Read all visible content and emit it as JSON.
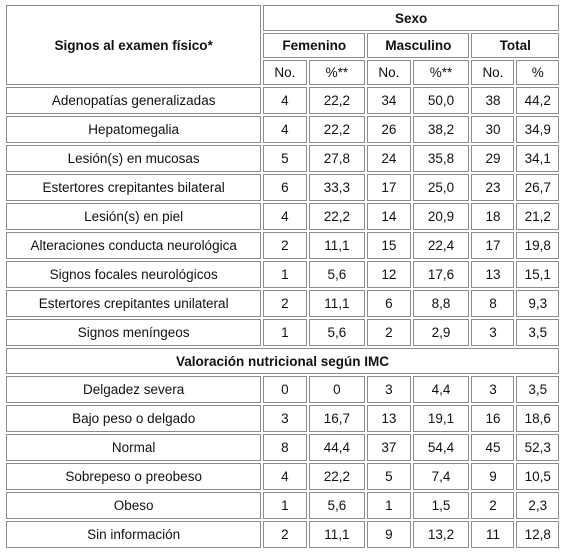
{
  "header": {
    "row_label": "Signos al examen físico*",
    "group": "Sexo",
    "subgroups": [
      "Femenino",
      "Masculino",
      "Total"
    ],
    "cols": [
      "No.",
      "%**",
      "No.",
      "%**",
      "No.",
      "%"
    ]
  },
  "signs": [
    {
      "label": "Adenopatías generalizadas",
      "values": [
        "4",
        "22,2",
        "34",
        "50,0",
        "38",
        "44,2"
      ]
    },
    {
      "label": "Hepatomegalia",
      "values": [
        "4",
        "22,2",
        "26",
        "38,2",
        "30",
        "34,9"
      ]
    },
    {
      "label": "Lesión(s) en mucosas",
      "values": [
        "5",
        "27,8",
        "24",
        "35,8",
        "29",
        "34,1"
      ]
    },
    {
      "label": "Estertores crepitantes bilateral",
      "values": [
        "6",
        "33,3",
        "17",
        "25,0",
        "23",
        "26,7"
      ]
    },
    {
      "label": "Lesión(s) en piel",
      "values": [
        "4",
        "22,2",
        "14",
        "20,9",
        "18",
        "21,2"
      ]
    },
    {
      "label": "Alteraciones conducta neurológica",
      "values": [
        "2",
        "11,1",
        "15",
        "22,4",
        "17",
        "19,8"
      ]
    },
    {
      "label": "Signos focales neurológicos",
      "values": [
        "1",
        "5,6",
        "12",
        "17,6",
        "13",
        "15,1"
      ]
    },
    {
      "label": "Estertores crepitantes unilateral",
      "values": [
        "2",
        "11,1",
        "6",
        "8,8",
        "8",
        "9,3"
      ]
    },
    {
      "label": "Signos meníngeos",
      "values": [
        "1",
        "5,6",
        "2",
        "2,9",
        "3",
        "3,5"
      ]
    }
  ],
  "section2_title": "Valoración nutricional según IMC",
  "nutrition": [
    {
      "label": "Delgadez severa",
      "values": [
        "0",
        "0",
        "3",
        "4,4",
        "3",
        "3,5"
      ]
    },
    {
      "label": "Bajo peso o delgado",
      "values": [
        "3",
        "16,7",
        "13",
        "19,1",
        "16",
        "18,6"
      ]
    },
    {
      "label": "Normal",
      "values": [
        "8",
        "44,4",
        "37",
        "54,4",
        "45",
        "52,3"
      ]
    },
    {
      "label": "Sobrepeso o preobeso",
      "values": [
        "4",
        "22,2",
        "5",
        "7,4",
        "9",
        "10,5"
      ]
    },
    {
      "label": "Obeso",
      "values": [
        "1",
        "5,6",
        "1",
        "1,5",
        "2",
        "2,3"
      ]
    },
    {
      "label": "Sin información",
      "values": [
        "2",
        "11,1",
        "9",
        "13,2",
        "11",
        "12,8"
      ]
    }
  ]
}
